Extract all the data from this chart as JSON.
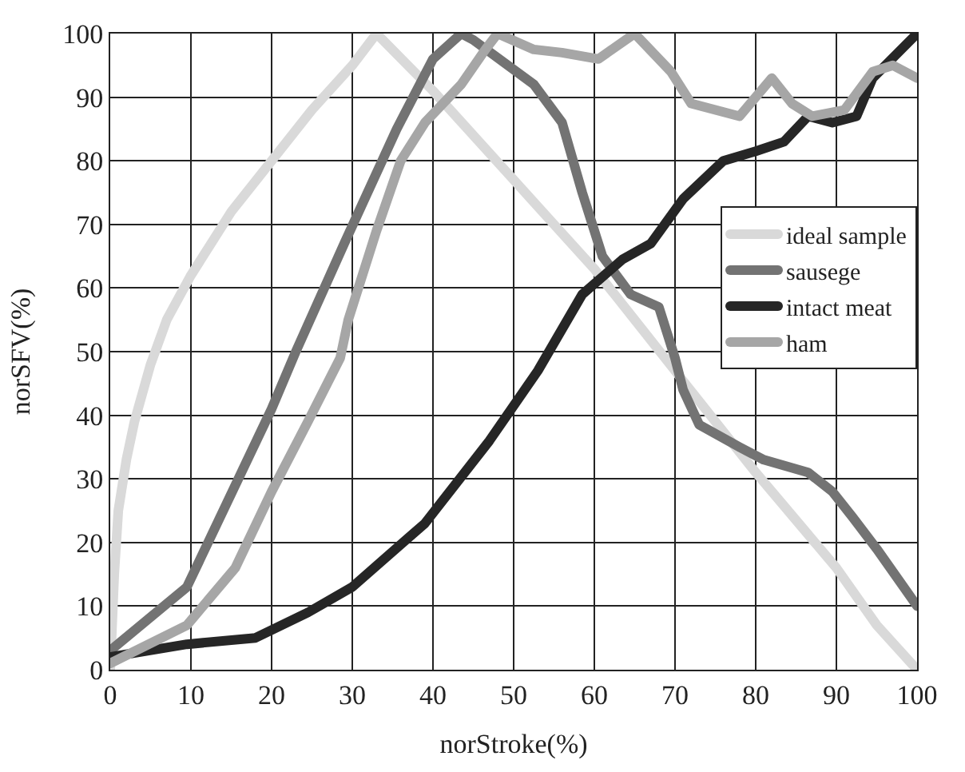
{
  "chart_data": {
    "type": "line",
    "xlabel": "norStroke(%)",
    "ylabel": "norSFV(%)",
    "xlim": [
      0,
      100
    ],
    "ylim": [
      0,
      100
    ],
    "xticks": [
      0,
      10,
      20,
      30,
      40,
      50,
      60,
      70,
      80,
      90,
      100
    ],
    "yticks": [
      0,
      10,
      20,
      30,
      40,
      50,
      60,
      70,
      80,
      90,
      100
    ],
    "grid": true,
    "legend": "right",
    "marker": "none",
    "line_style": "solid",
    "series": [
      {
        "name": "ideal sample",
        "color": "#d9d9d9",
        "x": [
          0,
          0.5,
          1,
          2,
          3,
          5,
          7,
          10,
          15,
          20,
          25,
          30,
          33,
          40,
          50,
          60,
          70,
          80,
          90,
          95,
          100
        ],
        "values": [
          0,
          15,
          25,
          33,
          39,
          48,
          55,
          62,
          72,
          80,
          88,
          95,
          100,
          91,
          77,
          63,
          47,
          31,
          16,
          7,
          0
        ]
      },
      {
        "name": "sausege",
        "color": "#737373",
        "x": [
          0,
          9.5,
          20,
          23,
          29,
          35.5,
          40,
          43.5,
          45,
          52.5,
          56,
          58.5,
          61,
          64.5,
          68,
          70,
          71,
          73,
          78,
          81,
          86.5,
          89.5,
          92,
          95,
          100
        ],
        "values": [
          3,
          13,
          41,
          50,
          67,
          85,
          96,
          100,
          99,
          92,
          86,
          75,
          65,
          59,
          57,
          49,
          44,
          38.5,
          35,
          33,
          31,
          28,
          24,
          19,
          10
        ]
      },
      {
        "name": "intact meat",
        "color": "#262626",
        "x": [
          0,
          9.5,
          18,
          24.5,
          30,
          39,
          47,
          53,
          58.5,
          63.5,
          67,
          71,
          76,
          80,
          83.5,
          86.5,
          89.5,
          92.5,
          94.5,
          100
        ],
        "values": [
          2,
          4,
          5,
          9,
          13,
          23,
          36,
          47,
          59,
          64.5,
          67,
          74,
          80,
          81.5,
          83,
          87,
          86,
          87,
          93,
          100
        ]
      },
      {
        "name": "ham",
        "color": "#a6a6a6",
        "x": [
          0,
          9.5,
          15.5,
          20,
          24.5,
          28.5,
          29.5,
          33,
          36,
          39,
          43.5,
          46.5,
          48,
          52.5,
          56,
          60.5,
          65,
          69.5,
          72,
          78,
          82,
          84.5,
          87,
          91,
          94.5,
          97,
          100
        ],
        "values": [
          1,
          7,
          16,
          28,
          39,
          49,
          55,
          69,
          80,
          86,
          92,
          97.5,
          100,
          97.5,
          97,
          96,
          100,
          94,
          89,
          87,
          93,
          89,
          87,
          88,
          94,
          95,
          93
        ]
      }
    ]
  }
}
